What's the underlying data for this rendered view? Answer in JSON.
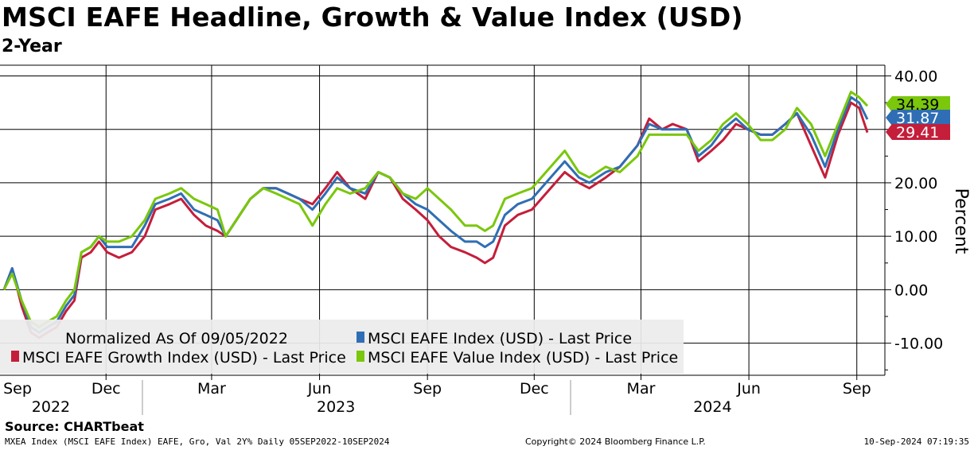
{
  "header": {
    "title": "MSCI EAFE Headline, Growth & Value Index (USD)",
    "subtitle": "2-Year"
  },
  "footer": {
    "source": "Source: CHARTbeat",
    "description": "MXEA Index (MSCI EAFE Index) EAFE, Gro, Val 2Y% Daily 05SEP2022-10SEP2024",
    "copyright": "Copyright© 2024 Bloomberg Finance L.P.",
    "timestamp": "10-Sep-2024 07:19:35"
  },
  "chart_data": {
    "type": "line",
    "ylabel": "Percent",
    "ylim": [
      -16,
      42
    ],
    "yticks": [
      -10,
      0,
      10,
      20,
      30,
      40
    ],
    "ytick_labels": [
      "-10.00",
      "0.00",
      "10.00",
      "20.00",
      "30.00",
      "40.00"
    ],
    "x_month_ticks": [
      {
        "date": "2022-09-01",
        "label": "Sep"
      },
      {
        "date": "2022-12-01",
        "label": "Dec"
      },
      {
        "date": "2023-03-01",
        "label": "Mar"
      },
      {
        "date": "2023-06-01",
        "label": "Jun"
      },
      {
        "date": "2023-09-01",
        "label": "Sep"
      },
      {
        "date": "2023-12-01",
        "label": "Dec"
      },
      {
        "date": "2024-03-01",
        "label": "Mar"
      },
      {
        "date": "2024-06-01",
        "label": "Jun"
      },
      {
        "date": "2024-09-01",
        "label": "Sep"
      }
    ],
    "year_labels": [
      {
        "date": "2022-10-15",
        "label": "2022"
      },
      {
        "date": "2023-06-15",
        "label": "2023"
      },
      {
        "date": "2024-05-01",
        "label": "2024"
      }
    ],
    "x_start": "2022-09-05",
    "x_end": "2024-09-10",
    "legend": {
      "placement": "bottom-left",
      "note": "Normalized As Of 09/05/2022"
    },
    "grid": true,
    "series": [
      {
        "name": "MSCI EAFE Growth Index (USD) - Last Price",
        "color": "#c41e3a",
        "last_value": 29.41,
        "last_label": "29.41",
        "points": [
          [
            "2022-09-05",
            0
          ],
          [
            "2022-09-12",
            4
          ],
          [
            "2022-09-20",
            -3
          ],
          [
            "2022-09-28",
            -8
          ],
          [
            "2022-10-05",
            -9
          ],
          [
            "2022-10-12",
            -8
          ],
          [
            "2022-10-20",
            -7
          ],
          [
            "2022-10-28",
            -4
          ],
          [
            "2022-11-04",
            -2
          ],
          [
            "2022-11-10",
            6
          ],
          [
            "2022-11-18",
            7
          ],
          [
            "2022-11-25",
            9
          ],
          [
            "2022-12-02",
            7
          ],
          [
            "2022-12-12",
            6
          ],
          [
            "2022-12-23",
            7
          ],
          [
            "2023-01-03",
            10
          ],
          [
            "2023-01-12",
            15
          ],
          [
            "2023-01-24",
            16
          ],
          [
            "2023-02-03",
            17
          ],
          [
            "2023-02-14",
            14
          ],
          [
            "2023-02-24",
            12
          ],
          [
            "2023-03-06",
            11
          ],
          [
            "2023-03-13",
            10
          ],
          [
            "2023-03-22",
            13
          ],
          [
            "2023-04-03",
            17
          ],
          [
            "2023-04-14",
            19
          ],
          [
            "2023-04-25",
            19
          ],
          [
            "2023-05-05",
            18
          ],
          [
            "2023-05-15",
            17
          ],
          [
            "2023-05-26",
            16
          ],
          [
            "2023-06-06",
            19
          ],
          [
            "2023-06-16",
            22
          ],
          [
            "2023-06-27",
            19
          ],
          [
            "2023-07-10",
            17
          ],
          [
            "2023-07-21",
            22
          ],
          [
            "2023-07-31",
            21
          ],
          [
            "2023-08-11",
            17
          ],
          [
            "2023-08-22",
            15
          ],
          [
            "2023-09-01",
            13
          ],
          [
            "2023-09-11",
            10
          ],
          [
            "2023-09-21",
            8
          ],
          [
            "2023-10-03",
            7
          ],
          [
            "2023-10-13",
            6
          ],
          [
            "2023-10-20",
            5
          ],
          [
            "2023-10-27",
            6
          ],
          [
            "2023-11-06",
            12
          ],
          [
            "2023-11-17",
            14
          ],
          [
            "2023-11-29",
            15
          ],
          [
            "2023-12-11",
            18
          ],
          [
            "2023-12-27",
            22
          ],
          [
            "2024-01-08",
            20
          ],
          [
            "2024-01-17",
            19
          ],
          [
            "2024-01-31",
            21
          ],
          [
            "2024-02-12",
            23
          ],
          [
            "2024-02-27",
            27
          ],
          [
            "2024-03-08",
            32
          ],
          [
            "2024-03-19",
            30
          ],
          [
            "2024-03-28",
            31
          ],
          [
            "2024-04-09",
            30
          ],
          [
            "2024-04-19",
            24
          ],
          [
            "2024-04-30",
            26
          ],
          [
            "2024-05-10",
            28
          ],
          [
            "2024-05-21",
            31
          ],
          [
            "2024-05-31",
            30
          ],
          [
            "2024-06-11",
            29
          ],
          [
            "2024-06-21",
            29
          ],
          [
            "2024-07-02",
            31
          ],
          [
            "2024-07-12",
            33
          ],
          [
            "2024-07-24",
            27
          ],
          [
            "2024-08-05",
            21
          ],
          [
            "2024-08-16",
            29
          ],
          [
            "2024-08-27",
            35
          ],
          [
            "2024-09-03",
            34
          ],
          [
            "2024-09-10",
            29.41
          ]
        ]
      },
      {
        "name": "MSCI EAFE Index (USD) - Last Price",
        "color": "#2f6eb5",
        "last_value": 31.87,
        "last_label": "31.87",
        "points": [
          [
            "2022-09-05",
            0
          ],
          [
            "2022-09-12",
            4
          ],
          [
            "2022-09-20",
            -2
          ],
          [
            "2022-09-28",
            -7
          ],
          [
            "2022-10-05",
            -8
          ],
          [
            "2022-10-12",
            -7
          ],
          [
            "2022-10-20",
            -6
          ],
          [
            "2022-10-28",
            -3
          ],
          [
            "2022-11-04",
            -1
          ],
          [
            "2022-11-10",
            7
          ],
          [
            "2022-11-18",
            8
          ],
          [
            "2022-11-25",
            10
          ],
          [
            "2022-12-02",
            8
          ],
          [
            "2022-12-12",
            8
          ],
          [
            "2022-12-23",
            8
          ],
          [
            "2023-01-03",
            12
          ],
          [
            "2023-01-12",
            16
          ],
          [
            "2023-01-24",
            17
          ],
          [
            "2023-02-03",
            18
          ],
          [
            "2023-02-14",
            15
          ],
          [
            "2023-02-24",
            14
          ],
          [
            "2023-03-06",
            13
          ],
          [
            "2023-03-13",
            10
          ],
          [
            "2023-03-22",
            13
          ],
          [
            "2023-04-03",
            17
          ],
          [
            "2023-04-14",
            19
          ],
          [
            "2023-04-25",
            19
          ],
          [
            "2023-05-05",
            18
          ],
          [
            "2023-05-15",
            17
          ],
          [
            "2023-05-26",
            15
          ],
          [
            "2023-06-06",
            18
          ],
          [
            "2023-06-16",
            21
          ],
          [
            "2023-06-27",
            19
          ],
          [
            "2023-07-10",
            18
          ],
          [
            "2023-07-21",
            22
          ],
          [
            "2023-07-31",
            21
          ],
          [
            "2023-08-11",
            18
          ],
          [
            "2023-08-22",
            16
          ],
          [
            "2023-09-01",
            15
          ],
          [
            "2023-09-11",
            13
          ],
          [
            "2023-09-21",
            11
          ],
          [
            "2023-10-03",
            9
          ],
          [
            "2023-10-13",
            9
          ],
          [
            "2023-10-20",
            8
          ],
          [
            "2023-10-27",
            9
          ],
          [
            "2023-11-06",
            14
          ],
          [
            "2023-11-17",
            16
          ],
          [
            "2023-11-29",
            17
          ],
          [
            "2023-12-11",
            20
          ],
          [
            "2023-12-27",
            24
          ],
          [
            "2024-01-08",
            21
          ],
          [
            "2024-01-17",
            20
          ],
          [
            "2024-01-31",
            22
          ],
          [
            "2024-02-12",
            23
          ],
          [
            "2024-02-27",
            27
          ],
          [
            "2024-03-08",
            31
          ],
          [
            "2024-03-19",
            30
          ],
          [
            "2024-03-28",
            30
          ],
          [
            "2024-04-09",
            30
          ],
          [
            "2024-04-19",
            25
          ],
          [
            "2024-04-30",
            27
          ],
          [
            "2024-05-10",
            30
          ],
          [
            "2024-05-21",
            32
          ],
          [
            "2024-05-31",
            30
          ],
          [
            "2024-06-11",
            29
          ],
          [
            "2024-06-21",
            29
          ],
          [
            "2024-07-02",
            31
          ],
          [
            "2024-07-12",
            33
          ],
          [
            "2024-07-24",
            29
          ],
          [
            "2024-08-05",
            23
          ],
          [
            "2024-08-16",
            30
          ],
          [
            "2024-08-27",
            36
          ],
          [
            "2024-09-03",
            35
          ],
          [
            "2024-09-10",
            31.87
          ]
        ]
      },
      {
        "name": "MSCI EAFE Value Index (USD) - Last Price",
        "color": "#7ac70c",
        "last_value": 34.39,
        "last_label": "34.39",
        "points": [
          [
            "2022-09-05",
            0
          ],
          [
            "2022-09-12",
            3
          ],
          [
            "2022-09-20",
            -2
          ],
          [
            "2022-09-28",
            -6
          ],
          [
            "2022-10-05",
            -7
          ],
          [
            "2022-10-12",
            -6
          ],
          [
            "2022-10-20",
            -5
          ],
          [
            "2022-10-28",
            -2
          ],
          [
            "2022-11-04",
            0
          ],
          [
            "2022-11-10",
            7
          ],
          [
            "2022-11-18",
            8
          ],
          [
            "2022-11-25",
            10
          ],
          [
            "2022-12-02",
            9
          ],
          [
            "2022-12-12",
            9
          ],
          [
            "2022-12-23",
            10
          ],
          [
            "2023-01-03",
            13
          ],
          [
            "2023-01-12",
            17
          ],
          [
            "2023-01-24",
            18
          ],
          [
            "2023-02-03",
            19
          ],
          [
            "2023-02-14",
            17
          ],
          [
            "2023-02-24",
            16
          ],
          [
            "2023-03-06",
            15
          ],
          [
            "2023-03-13",
            10
          ],
          [
            "2023-03-22",
            13
          ],
          [
            "2023-04-03",
            17
          ],
          [
            "2023-04-14",
            19
          ],
          [
            "2023-04-25",
            18
          ],
          [
            "2023-05-05",
            17
          ],
          [
            "2023-05-15",
            16
          ],
          [
            "2023-05-26",
            12
          ],
          [
            "2023-06-06",
            16
          ],
          [
            "2023-06-16",
            19
          ],
          [
            "2023-06-27",
            18
          ],
          [
            "2023-07-10",
            19
          ],
          [
            "2023-07-21",
            22
          ],
          [
            "2023-07-31",
            21
          ],
          [
            "2023-08-11",
            18
          ],
          [
            "2023-08-22",
            17
          ],
          [
            "2023-09-01",
            19
          ],
          [
            "2023-09-11",
            17
          ],
          [
            "2023-09-21",
            15
          ],
          [
            "2023-10-03",
            12
          ],
          [
            "2023-10-13",
            12
          ],
          [
            "2023-10-20",
            11
          ],
          [
            "2023-10-27",
            12
          ],
          [
            "2023-11-06",
            17
          ],
          [
            "2023-11-17",
            18
          ],
          [
            "2023-11-29",
            19
          ],
          [
            "2023-12-11",
            22
          ],
          [
            "2023-12-27",
            26
          ],
          [
            "2024-01-08",
            22
          ],
          [
            "2024-01-17",
            21
          ],
          [
            "2024-01-31",
            23
          ],
          [
            "2024-02-12",
            22
          ],
          [
            "2024-02-27",
            25
          ],
          [
            "2024-03-08",
            29
          ],
          [
            "2024-03-19",
            29
          ],
          [
            "2024-03-28",
            29
          ],
          [
            "2024-04-09",
            29
          ],
          [
            "2024-04-19",
            26
          ],
          [
            "2024-04-30",
            28
          ],
          [
            "2024-05-10",
            31
          ],
          [
            "2024-05-21",
            33
          ],
          [
            "2024-05-31",
            31
          ],
          [
            "2024-06-11",
            28
          ],
          [
            "2024-06-21",
            28
          ],
          [
            "2024-07-02",
            30
          ],
          [
            "2024-07-12",
            34
          ],
          [
            "2024-07-24",
            31
          ],
          [
            "2024-08-05",
            25
          ],
          [
            "2024-08-16",
            31
          ],
          [
            "2024-08-27",
            37
          ],
          [
            "2024-09-03",
            36
          ],
          [
            "2024-09-10",
            34.39
          ]
        ]
      }
    ]
  }
}
